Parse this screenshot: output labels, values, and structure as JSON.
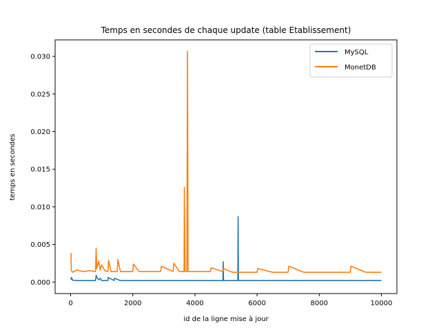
{
  "chart_data": {
    "type": "line",
    "title": "Temps en secondes de chaque update (table Etablissement)",
    "xlabel": "id de la ligne mise à jour",
    "ylabel": "temps en secondes",
    "xlim": [
      -500,
      10500
    ],
    "ylim": [
      -0.00153,
      0.0322
    ],
    "x_ticks": [
      0,
      2000,
      4000,
      6000,
      8000,
      10000
    ],
    "x_tick_labels": [
      "0",
      "2000",
      "4000",
      "6000",
      "8000",
      "10000"
    ],
    "y_ticks": [
      0.0,
      0.005,
      0.01,
      0.015,
      0.02,
      0.025,
      0.03
    ],
    "y_tick_labels": [
      "0.000",
      "0.005",
      "0.010",
      "0.015",
      "0.020",
      "0.025",
      "0.030"
    ],
    "grid": false,
    "legend_position": "top-right",
    "series": [
      {
        "name": "MySQL",
        "color": "#1f77b4",
        "x": [
          0,
          30,
          60,
          200,
          500,
          800,
          820,
          850,
          900,
          950,
          1000,
          1200,
          1210,
          1400,
          1410,
          1600,
          2000,
          3000,
          4000,
          4900,
          4910,
          4920,
          5000,
          5380,
          5390,
          5400,
          6000,
          7000,
          8000,
          9000,
          10000
        ],
        "values": [
          0.0003,
          0.0006,
          0.00025,
          0.0002,
          0.0002,
          0.0002,
          0.0009,
          0.0006,
          0.0003,
          0.0005,
          0.0002,
          0.0002,
          0.0006,
          0.0002,
          0.0005,
          0.0002,
          0.0002,
          0.0002,
          0.0002,
          0.0002,
          0.0027,
          0.0002,
          0.0002,
          0.0002,
          0.0087,
          0.0002,
          0.0002,
          0.0002,
          0.0002,
          0.0002,
          0.0002
        ]
      },
      {
        "name": "MonetDB",
        "color": "#ff7f0e",
        "x": [
          0,
          10,
          20,
          60,
          200,
          400,
          600,
          800,
          820,
          840,
          900,
          950,
          1000,
          1100,
          1200,
          1220,
          1300,
          1500,
          1520,
          1600,
          2000,
          2020,
          2200,
          2500,
          2900,
          2920,
          3300,
          3320,
          3500,
          3650,
          3660,
          3680,
          3700,
          3740,
          3760,
          3780,
          3800,
          3900,
          4200,
          4500,
          4520,
          4900,
          4920,
          5200,
          5500,
          6000,
          6020,
          6500,
          7000,
          7020,
          7500,
          8000,
          8500,
          9000,
          9020,
          9500,
          10000
        ],
        "values": [
          0.0036,
          0.0038,
          0.0016,
          0.0013,
          0.0016,
          0.0014,
          0.0015,
          0.0014,
          0.0045,
          0.0018,
          0.0028,
          0.0016,
          0.0023,
          0.0015,
          0.0014,
          0.0029,
          0.0014,
          0.0014,
          0.003,
          0.0014,
          0.0014,
          0.0024,
          0.0014,
          0.0014,
          0.0014,
          0.0021,
          0.0014,
          0.0025,
          0.0014,
          0.0014,
          0.0126,
          0.0014,
          0.0014,
          0.0014,
          0.0307,
          0.0014,
          0.0014,
          0.0014,
          0.0014,
          0.0014,
          0.0019,
          0.0014,
          0.0018,
          0.0013,
          0.0013,
          0.0013,
          0.0018,
          0.0013,
          0.0013,
          0.0021,
          0.0013,
          0.0013,
          0.0013,
          0.0013,
          0.0021,
          0.0013,
          0.0013
        ]
      }
    ]
  }
}
